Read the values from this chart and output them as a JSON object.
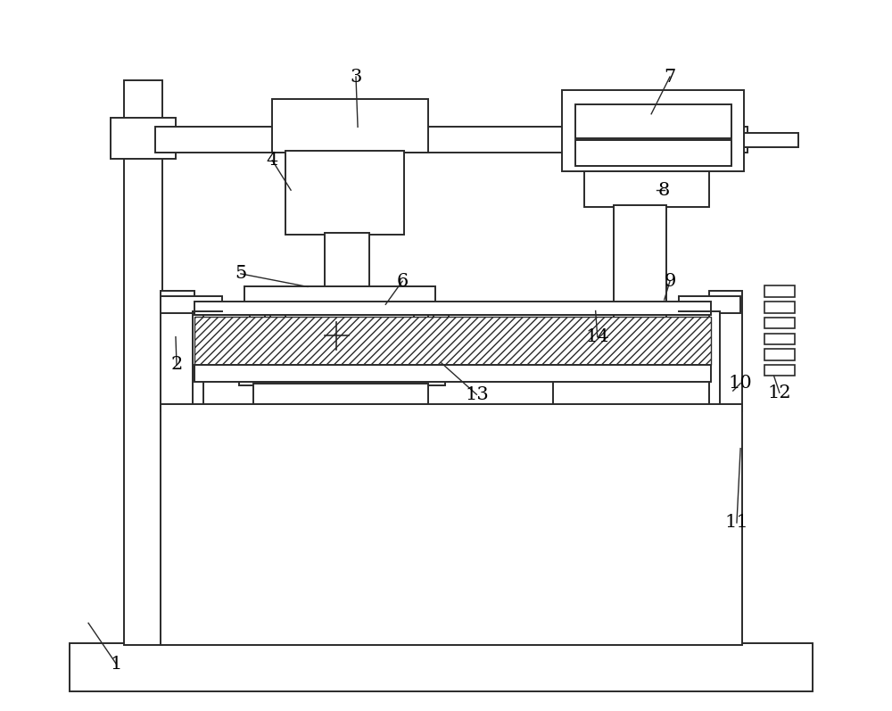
{
  "bg_color": "#ffffff",
  "line_color": "#2a2a2a",
  "lw": 1.4,
  "figsize": [
    10.0,
    7.97
  ]
}
